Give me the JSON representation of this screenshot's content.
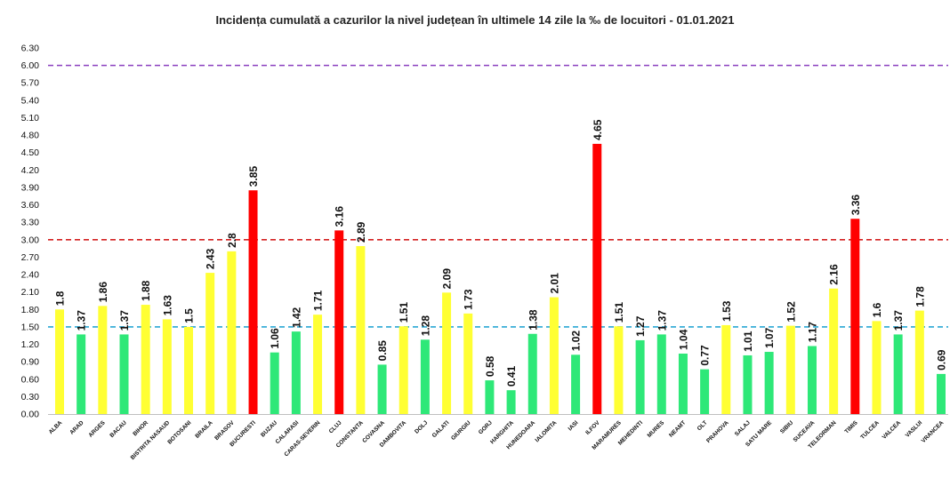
{
  "chart_data": {
    "type": "bar",
    "title": "Incidența cumulată a cazurilor la nivel județean în ultimele 14 zile la ‰ de locuitori - 01.01.2021",
    "xlabel": "",
    "ylabel": "",
    "ylim": [
      0,
      6.3
    ],
    "yticks": [
      "0.00",
      "0.30",
      "0.60",
      "0.90",
      "1.20",
      "1.50",
      "1.80",
      "2.10",
      "2.40",
      "2.70",
      "3.00",
      "3.30",
      "3.60",
      "3.90",
      "4.20",
      "4.50",
      "4.80",
      "5.10",
      "5.40",
      "5.70",
      "6.00",
      "6.30"
    ],
    "grid": false,
    "categories": [
      "ALBA",
      "ARAD",
      "ARGES",
      "BACAU",
      "BIHOR",
      "BISTRITA NASAUD",
      "BOTOSANI",
      "BRAILA",
      "BRASOV",
      "BUCURESTI",
      "BUZAU",
      "CALARASI",
      "CARAS-SEVERIN",
      "CLUJ",
      "CONSTANTA",
      "COVASNA",
      "DAMBOVITA",
      "DOLJ",
      "GALATI",
      "GIURGIU",
      "GORJ",
      "HARGHITA",
      "HUNEDOARA",
      "IALOMITA",
      "IASI",
      "ILFOV",
      "MARAMURES",
      "MEHEDINTI",
      "MURES",
      "NEAMT",
      "OLT",
      "PRAHOVA",
      "SALAJ",
      "SATU MARE",
      "SIBIU",
      "SUCEAVA",
      "TELEORMAN",
      "TIMIS",
      "TULCEA",
      "VALCEA",
      "VASLUI",
      "VRANCEA"
    ],
    "values": [
      1.8,
      1.37,
      1.86,
      1.37,
      1.88,
      1.63,
      1.5,
      2.43,
      2.8,
      3.85,
      1.06,
      1.42,
      1.71,
      3.16,
      2.89,
      0.85,
      1.51,
      1.28,
      2.09,
      1.73,
      0.58,
      0.41,
      1.38,
      2.01,
      1.02,
      4.65,
      1.51,
      1.27,
      1.37,
      1.04,
      0.77,
      1.53,
      1.01,
      1.07,
      1.52,
      1.17,
      2.16,
      3.36,
      1.6,
      1.37,
      1.78,
      0.69
    ],
    "value_labels": [
      "1.8",
      "1.37",
      "1.86",
      "1.37",
      "1.88",
      "1.63",
      "1.5",
      "2.43",
      "2.8",
      "3.85",
      "1.06",
      "1.42",
      "1.71",
      "3.16",
      "2.89",
      "0.85",
      "1.51",
      "1.28",
      "2.09",
      "1.73",
      "0.58",
      "0.41",
      "1.38",
      "2.01",
      "1.02",
      "4.65",
      "1.51",
      "1.27",
      "1.37",
      "1.04",
      "0.77",
      "1.53",
      "1.01",
      "1.07",
      "1.52",
      "1.17",
      "2.16",
      "3.36",
      "1.6",
      "1.37",
      "1.78",
      "0.69"
    ],
    "bar_colors": {
      "green": "#2ee878",
      "yellow": "#ffff33",
      "red": "#ff0000"
    },
    "color_rules": {
      "green_below": 1.5,
      "yellow_below": 3.0
    },
    "reference_lines": [
      {
        "value": 1.5,
        "color": "#2aa8d4"
      },
      {
        "value": 3.0,
        "color": "#d42020"
      },
      {
        "value": 6.0,
        "color": "#8a3fbf"
      }
    ]
  }
}
